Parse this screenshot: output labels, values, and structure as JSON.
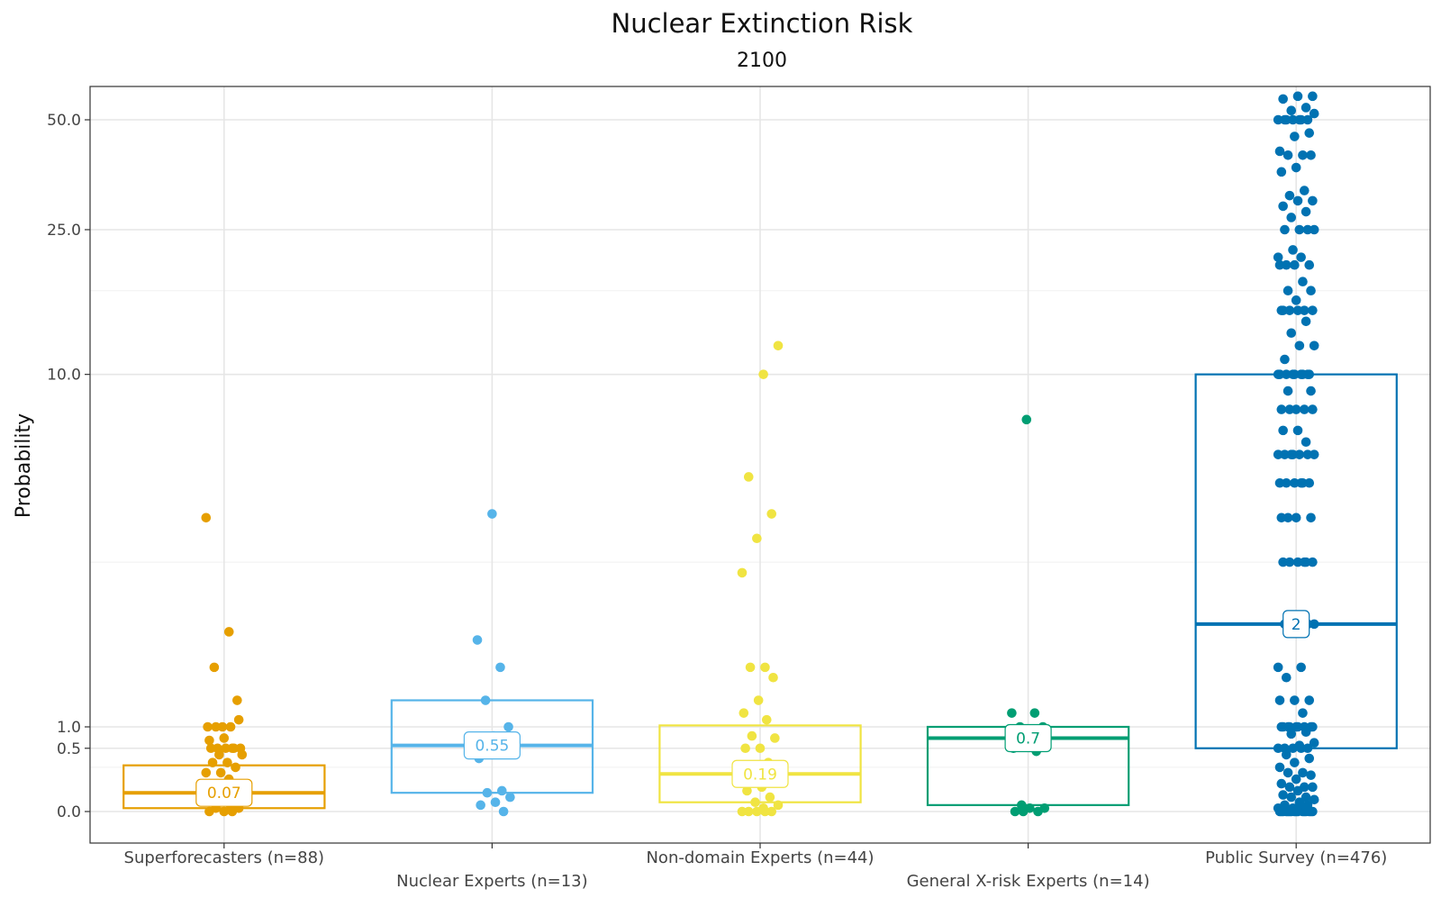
{
  "chart_data": {
    "type": "box",
    "title": "Nuclear Extinction Risk",
    "subtitle": "2100",
    "xlabel": "",
    "ylabel": "Probability",
    "yscale": "pseudo-log",
    "ylim": [
      -0.5,
      60
    ],
    "yticks": [
      {
        "value": 0,
        "label": "0.0"
      },
      {
        "value": 0.5,
        "label": "0.5"
      },
      {
        "value": 1,
        "label": "1.0"
      },
      {
        "value": 10,
        "label": "10.0"
      },
      {
        "value": 25,
        "label": "25.0"
      },
      {
        "value": 50,
        "label": "50.0"
      }
    ],
    "minor_gridlines": [
      0.25,
      3,
      17
    ],
    "grid": true,
    "categories": [
      {
        "label": "Superforecasters (n=88)",
        "color": "#E69F00",
        "q1": 0.01,
        "median": 0.07,
        "q3": 0.27,
        "median_label": "0.07",
        "points": [
          4,
          1.9,
          1.5,
          1.2,
          1,
          1,
          1,
          1,
          1.05,
          0.7,
          0.65,
          0.5,
          0.5,
          0.5,
          0.5,
          0.5,
          0.5,
          0.4,
          0.4,
          0.3,
          0.3,
          0.25,
          0.2,
          0.2,
          0.15,
          0.1,
          0.1,
          0.05,
          0.05,
          0.02,
          0.01,
          0.01,
          0,
          0,
          0
        ]
      },
      {
        "label": "Nuclear Experts (n=13)",
        "color": "#56B4E9",
        "q1": 0.07,
        "median": 0.55,
        "q3": 1.2,
        "median_label": "0.55",
        "points": [
          4.1,
          1.8,
          1.5,
          1.2,
          1,
          0.75,
          0.35,
          0.08,
          0.07,
          0.05,
          0.03,
          0.02,
          0
        ]
      },
      {
        "label": "Non-domain Experts (n=44)",
        "color": "#F0E442",
        "q1": 0.03,
        "median": 0.19,
        "q3": 1.01,
        "median_label": "0.19",
        "points": [
          12,
          10,
          5.2,
          4.1,
          3.5,
          2.8,
          1.5,
          1.5,
          1.4,
          1.2,
          1.1,
          1.05,
          0.75,
          0.7,
          0.5,
          0.5,
          0.3,
          0.2,
          0.15,
          0.1,
          0.08,
          0.05,
          0.03,
          0.02,
          0.01,
          0,
          0,
          0,
          0,
          0
        ]
      },
      {
        "label": "General X-risk Experts (n=14)",
        "color": "#009E73",
        "q1": 0.02,
        "median": 0.7,
        "q3": 1.0,
        "median_label": "0.7",
        "points": [
          7.5,
          1.1,
          1.1,
          1,
          1,
          0.9,
          0.5,
          0.45,
          0.02,
          0.01,
          0.01,
          0,
          0,
          0
        ]
      },
      {
        "label": "Public Survey (n=476)",
        "color": "#0072B2",
        "q1": 0.5,
        "median": 2,
        "q3": 10,
        "median_label": "2",
        "points": [
          58,
          58,
          57,
          54,
          53,
          52,
          50,
          50,
          50,
          50,
          50,
          50,
          50,
          46,
          45,
          41,
          40,
          40,
          40,
          37,
          36,
          32,
          31,
          30,
          30,
          29,
          28,
          27,
          25,
          25,
          25,
          25,
          22,
          21,
          21,
          20,
          20,
          20,
          20,
          18,
          17,
          17,
          16,
          15,
          15,
          15,
          15,
          15,
          15,
          14,
          13,
          12,
          12,
          11,
          10,
          10,
          10,
          10,
          10,
          10,
          10,
          10,
          10,
          9,
          9,
          8,
          8,
          8,
          8,
          8,
          7,
          7,
          6.5,
          6,
          6,
          6,
          6,
          6,
          6,
          6,
          5,
          5,
          5,
          5,
          5,
          5,
          4,
          4,
          4,
          4,
          3,
          3,
          3,
          3,
          3,
          3,
          2,
          2,
          2,
          2,
          2,
          2,
          1.5,
          1.5,
          1.4,
          1.2,
          1.2,
          1.2,
          1.1,
          1,
          1,
          1,
          1,
          1,
          1,
          1,
          1,
          1,
          0.85,
          0.8,
          0.6,
          0.55,
          0.5,
          0.5,
          0.5,
          0.5,
          0.5,
          0.4,
          0.35,
          0.3,
          0.25,
          0.2,
          0.2,
          0.18,
          0.15,
          0.12,
          0.1,
          0.1,
          0.1,
          0.08,
          0.06,
          0.05,
          0.05,
          0.04,
          0.03,
          0.02,
          0.02,
          0.01,
          0.01,
          0.01,
          0,
          0,
          0,
          0,
          0,
          0,
          0,
          0,
          0,
          0,
          0,
          0,
          0,
          0,
          0,
          0
        ]
      }
    ]
  }
}
